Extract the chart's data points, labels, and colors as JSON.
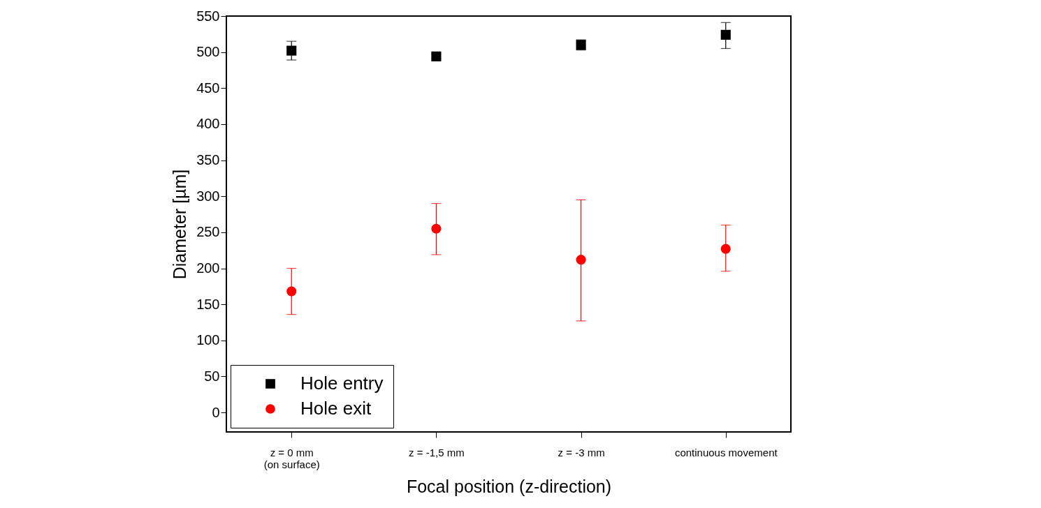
{
  "chart_data": {
    "type": "scatter",
    "xlabel": "Focal position (z-direction)",
    "ylabel": "Diameter [µm]",
    "categories": [
      "z = 0 mm\n(on surface)",
      "z = -1,5 mm",
      "z = -3 mm",
      "continuous movement"
    ],
    "ylim": [
      -27,
      550
    ],
    "yticks": [
      0,
      50,
      100,
      150,
      200,
      250,
      300,
      350,
      400,
      450,
      500,
      550
    ],
    "grid": false,
    "legend": "bottom left",
    "series": [
      {
        "name": "Hole entry",
        "color": "#000000",
        "marker": "square",
        "values": [
          502,
          494,
          510,
          524
        ],
        "errors": [
          13,
          3,
          7,
          [
            505,
            541
          ]
        ]
      },
      {
        "name": "Hole exit",
        "color": "#ff0000",
        "marker": "circle",
        "values": [
          168,
          255,
          212,
          227
        ],
        "errors": [
          32,
          [
            219,
            290
          ],
          [
            127,
            295
          ],
          [
            196,
            260
          ]
        ]
      }
    ]
  }
}
